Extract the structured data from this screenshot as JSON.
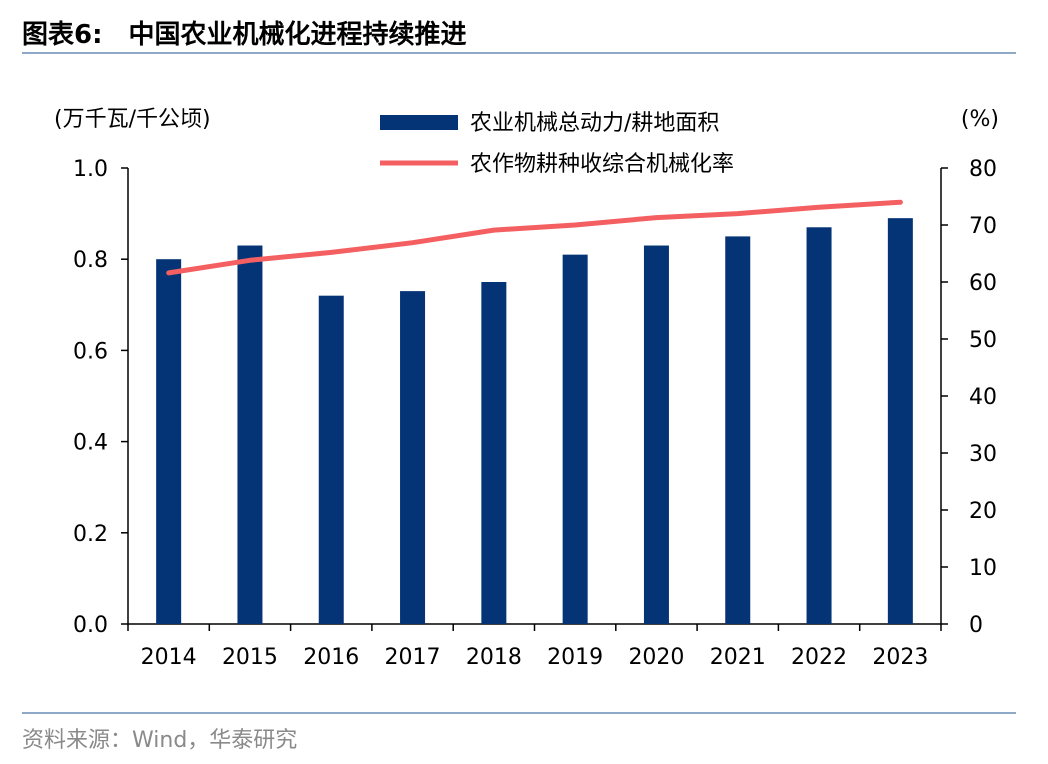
{
  "header": {
    "figure_label": "图表6:",
    "title": "中国农业机械化进程持续推进"
  },
  "footer": {
    "source": "资料来源：Wind，华泰研究"
  },
  "colors": {
    "bar": "#043476",
    "line": "#f46061",
    "rule": "#8ea9c8",
    "source_text": "#8a8a8a"
  },
  "chart_data": {
    "type": "bar",
    "categories": [
      "2014",
      "2015",
      "2016",
      "2017",
      "2018",
      "2019",
      "2020",
      "2021",
      "2022",
      "2023"
    ],
    "series": [
      {
        "name": "农业机械总动力/耕地面积",
        "type": "bar",
        "axis": "left",
        "values": [
          0.8,
          0.83,
          0.72,
          0.73,
          0.75,
          0.81,
          0.83,
          0.85,
          0.87,
          0.89
        ]
      },
      {
        "name": "农作物耕种收综合机械化率",
        "type": "line",
        "axis": "right",
        "values": [
          61.6,
          63.8,
          65.2,
          66.9,
          69.1,
          70.0,
          71.3,
          72.0,
          73.1,
          74.0
        ]
      }
    ],
    "y_left": {
      "label": "(万千瓦/千公顷)",
      "range": [
        0,
        1.0
      ],
      "ticks": [
        "0.0",
        "0.2",
        "0.4",
        "0.6",
        "0.8",
        "1.0"
      ]
    },
    "y_right": {
      "label": "(%)",
      "range": [
        0,
        80
      ],
      "ticks": [
        "0",
        "10",
        "20",
        "30",
        "40",
        "50",
        "60",
        "70",
        "80"
      ]
    },
    "legend_position": "top",
    "grid": false
  }
}
